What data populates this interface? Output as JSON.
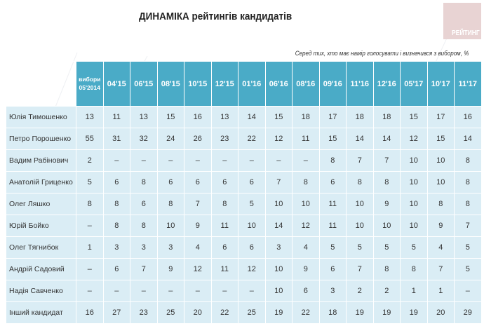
{
  "title": "ДИНАМІКА рейтингів кандидатів",
  "logo": "РЕЙТИНГ",
  "note": "Серед тих, хто має намір голосувати і визначився з вибором, %",
  "columns": [
    "вибори 05'2014",
    "04'15",
    "06'15",
    "08'15",
    "10'15",
    "12'15",
    "01'16",
    "06'16",
    "08'16",
    "09'16",
    "11'16",
    "12'16",
    "05'17",
    "10'17",
    "11'17"
  ],
  "rows": [
    {
      "name": "Юлія Тимошенко",
      "values": [
        "13",
        "11",
        "13",
        "15",
        "16",
        "13",
        "14",
        "15",
        "18",
        "17",
        "18",
        "18",
        "15",
        "17",
        "16"
      ]
    },
    {
      "name": "Петро Порошенко",
      "values": [
        "55",
        "31",
        "32",
        "24",
        "26",
        "23",
        "22",
        "12",
        "11",
        "15",
        "14",
        "14",
        "12",
        "15",
        "14"
      ]
    },
    {
      "name": "Вадим Рабінович",
      "values": [
        "2",
        "–",
        "–",
        "–",
        "–",
        "–",
        "–",
        "–",
        "–",
        "8",
        "7",
        "7",
        "10",
        "10",
        "8"
      ]
    },
    {
      "name": "Анатолій Гриценко",
      "values": [
        "5",
        "6",
        "8",
        "6",
        "6",
        "6",
        "6",
        "7",
        "8",
        "6",
        "8",
        "8",
        "10",
        "10",
        "8"
      ]
    },
    {
      "name": "Олег Ляшко",
      "values": [
        "8",
        "8",
        "6",
        "8",
        "7",
        "8",
        "5",
        "10",
        "10",
        "11",
        "10",
        "9",
        "10",
        "8",
        "8"
      ]
    },
    {
      "name": "Юрій Бойко",
      "values": [
        "–",
        "8",
        "8",
        "10",
        "9",
        "11",
        "10",
        "14",
        "12",
        "11",
        "10",
        "10",
        "10",
        "9",
        "7"
      ]
    },
    {
      "name": "Олег Тягнибок",
      "values": [
        "1",
        "3",
        "3",
        "3",
        "4",
        "6",
        "6",
        "3",
        "4",
        "5",
        "5",
        "5",
        "5",
        "4",
        "5"
      ]
    },
    {
      "name": "Андрій Садовий",
      "values": [
        "–",
        "6",
        "7",
        "9",
        "12",
        "11",
        "12",
        "10",
        "9",
        "6",
        "7",
        "8",
        "8",
        "7",
        "5"
      ]
    },
    {
      "name": "Надія Савченко",
      "values": [
        "–",
        "–",
        "–",
        "–",
        "–",
        "–",
        "–",
        "10",
        "6",
        "3",
        "2",
        "2",
        "1",
        "1",
        "–"
      ]
    },
    {
      "name": "Інший кандидат",
      "values": [
        "16",
        "27",
        "23",
        "25",
        "20",
        "22",
        "25",
        "19",
        "22",
        "18",
        "19",
        "19",
        "19",
        "20",
        "29"
      ]
    }
  ]
}
